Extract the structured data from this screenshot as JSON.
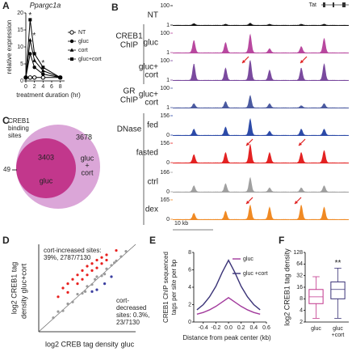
{
  "chart_data": [
    {
      "panel": "A",
      "type": "line",
      "title": "Ppargc1a",
      "xlabel": "treatment duration (hr)",
      "ylabel": "relative expression",
      "x": [
        0,
        1,
        2,
        4,
        8
      ],
      "xlim": [
        0,
        9
      ],
      "xticks": [
        0,
        2,
        4,
        6,
        8
      ],
      "ylim": [
        0,
        20
      ],
      "yticks": [
        0,
        5,
        10,
        15,
        20
      ],
      "annotations": [
        "*",
        "*",
        "*"
      ],
      "series": [
        {
          "name": "NT",
          "color": "#000000",
          "marker": "open-circle",
          "values": [
            1,
            1,
            1,
            1,
            1
          ]
        },
        {
          "name": "gluc",
          "color": "#000000",
          "marker": "circle",
          "values": [
            1,
            8,
            4,
            2,
            1
          ]
        },
        {
          "name": "cort",
          "color": "#000000",
          "marker": "triangle",
          "values": [
            1,
            12,
            6,
            3,
            1
          ]
        },
        {
          "name": "gluc+cort",
          "color": "#000000",
          "marker": "square",
          "values": [
            1,
            18,
            8,
            4,
            1
          ]
        }
      ]
    },
    {
      "panel": "D",
      "type": "scatter",
      "xlabel": "log2 CREB tag density",
      "xlabel_group": "gluc",
      "ylabel": [
        "log2 CREB1 tag",
        "density"
      ],
      "ylabel_group": "gluc+cort",
      "increased": [
        "cort-increased sites:",
        "39%, 2787/7130"
      ],
      "decreased": [
        "cort-",
        "decreased",
        "sites: 0.3%,",
        "23/7130"
      ],
      "xlim": [
        0,
        10
      ],
      "ylim": [
        0,
        10
      ],
      "series": [
        {
          "color": "#9a9a9a",
          "x": [
            1.5,
            2,
            2.5,
            3,
            3.5,
            4,
            4.5,
            5,
            5.5,
            6,
            6.5,
            7,
            7.5,
            8,
            8.5,
            9,
            6.8,
            5.8,
            4.8,
            7.8
          ],
          "y": [
            1.6,
            2.3,
            2.4,
            3.2,
            3.4,
            4.3,
            4.4,
            5.2,
            5.4,
            6.3,
            6.4,
            7.2,
            7.6,
            8.1,
            8.6,
            9.2,
            6.6,
            6,
            4.6,
            7.9
          ]
        },
        {
          "color": "#e8201e",
          "x": [
            2,
            2.5,
            3,
            3.5,
            4,
            4.5,
            5,
            5.5,
            6,
            6.5,
            7,
            3,
            4,
            5,
            6,
            7,
            8,
            4.5,
            5.5,
            6.5
          ],
          "y": [
            4,
            5,
            5.5,
            6,
            6.5,
            7,
            7.5,
            7.8,
            8.2,
            8.5,
            8.8,
            4.5,
            5.5,
            6.5,
            7.3,
            8.2,
            9.3,
            6,
            7,
            7.8
          ]
        },
        {
          "color": "#3b3fa0",
          "x": [
            6,
            6.8,
            7.5,
            5.5
          ],
          "y": [
            4.8,
            5.5,
            6.3,
            4.6
          ]
        }
      ]
    },
    {
      "panel": "E",
      "type": "line",
      "xlabel": "Distance from peak center (kb)",
      "ylabel": [
        "CREB1 ChIP sequenced",
        "tags per site per bp"
      ],
      "x": [
        -0.5,
        -0.4,
        -0.3,
        -0.2,
        -0.1,
        0,
        0.1,
        0.2,
        0.3,
        0.4,
        0.5
      ],
      "xlim": [
        -0.55,
        0.6
      ],
      "xticks": [
        -0.4,
        -0.2,
        {
          "value": 0,
          "label": "0.0"
        },
        0.2,
        0.4,
        0.6
      ],
      "ylim": [
        0,
        8
      ],
      "yticks": [
        0,
        2,
        4,
        6,
        8
      ],
      "series": [
        {
          "name": "gluc",
          "color": "#a23a9c",
          "values": [
            0.9,
            1.1,
            1.4,
            1.8,
            2.3,
            2.8,
            2.3,
            1.8,
            1.4,
            1.1,
            0.9
          ]
        },
        {
          "name": "gluc +cort",
          "color": "#3a3377",
          "values": [
            1.4,
            2,
            2.9,
            4.1,
            5.7,
            7.1,
            5.7,
            4.1,
            2.9,
            2,
            1.4
          ]
        }
      ]
    },
    {
      "panel": "F",
      "type": "box",
      "ylabel": "log2 CREB1 tag density",
      "log_base": 2,
      "ylim": [
        2,
        128
      ],
      "yticks": [
        2,
        4,
        8,
        16,
        32,
        64,
        128
      ],
      "categories": [
        [
          "gluc"
        ],
        [
          "gluc",
          "+cort"
        ]
      ],
      "annotation": "**",
      "boxes": [
        {
          "color": "#c2378c",
          "low": 2.5,
          "q1": 6,
          "median": 9,
          "q3": 14,
          "high": 30
        },
        {
          "color": "#3a3377",
          "low": 2.5,
          "q1": 8,
          "median": 14,
          "q3": 22,
          "high": 50
        }
      ]
    }
  ],
  "venn": {
    "panel": "C",
    "title": [
      "CREB1",
      "binding",
      "sites"
    ],
    "only_gluc": 49,
    "both": 3403,
    "only_gluc_cort": 3678,
    "sets": [
      {
        "label": [
          "gluc"
        ],
        "color": "#c2378c"
      },
      {
        "label": [
          "gluc",
          "+",
          "cort"
        ],
        "color": "#dba6d8"
      }
    ]
  },
  "tracks": {
    "panel": "B",
    "gene": "Tat",
    "scale_bar": "10 kb",
    "groups": [
      [
        "CREB1",
        "ChIP"
      ],
      [
        "GR",
        "ChIP"
      ],
      [
        "DNase"
      ]
    ],
    "rows": [
      {
        "label": [
          "NT"
        ],
        "max": 100,
        "min": 1,
        "color": "#111111"
      },
      {
        "label": [
          "gluc"
        ],
        "max": 100,
        "min": 1,
        "color": "#b8489f"
      },
      {
        "label": [
          "gluc+",
          "cort"
        ],
        "max": 100,
        "min": 1,
        "color": "#7a4a9e"
      },
      {
        "label": [
          "gluc+",
          "cort"
        ],
        "max": 100,
        "min": 1,
        "color": "#4b5aa0"
      },
      {
        "label": [
          "fed"
        ],
        "max": 156,
        "min": 0,
        "color": "#2c4aa8"
      },
      {
        "label": [
          "fasted"
        ],
        "max": 156,
        "min": 0,
        "color": "#e32222"
      },
      {
        "label": [
          "ctrl"
        ],
        "max": 166,
        "min": 0,
        "color": "#a0a0a0"
      },
      {
        "label": [
          "dex"
        ],
        "max": 165,
        "min": 0,
        "color": "#f08a24"
      }
    ]
  }
}
